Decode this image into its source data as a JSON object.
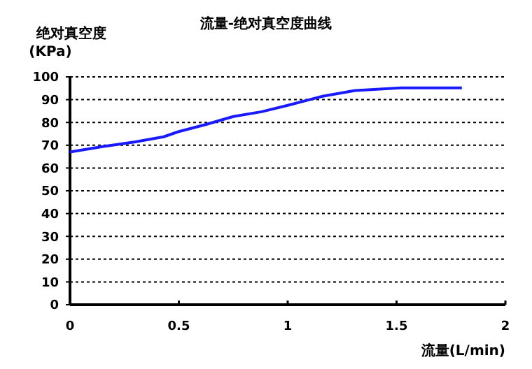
{
  "chart_data": {
    "type": "line",
    "title": "流量-绝对真空度曲线",
    "xlabel": "流量(L/min)",
    "ylabel": "绝对真空度\n(KPa)",
    "series": [
      {
        "color": "#1a1aff",
        "x": [
          0,
          0.15,
          0.3,
          0.43,
          0.5,
          0.62,
          0.75,
          0.88,
          1.0,
          1.1,
          1.16,
          1.31,
          1.52,
          1.8
        ],
        "values": [
          67,
          69.4,
          71.5,
          73.7,
          76,
          79,
          82.6,
          84.7,
          87.5,
          90,
          91.5,
          94,
          95.2,
          95.2
        ]
      }
    ],
    "xlim": [
      0,
      2
    ],
    "xticks": [
      0,
      0.5,
      1,
      1.5,
      2
    ],
    "ylim": [
      0,
      100
    ],
    "yticks": [
      0,
      10,
      20,
      30,
      40,
      50,
      60,
      70,
      80,
      90,
      100
    ],
    "grid": "y",
    "marker": "none",
    "line_style": "solid"
  }
}
